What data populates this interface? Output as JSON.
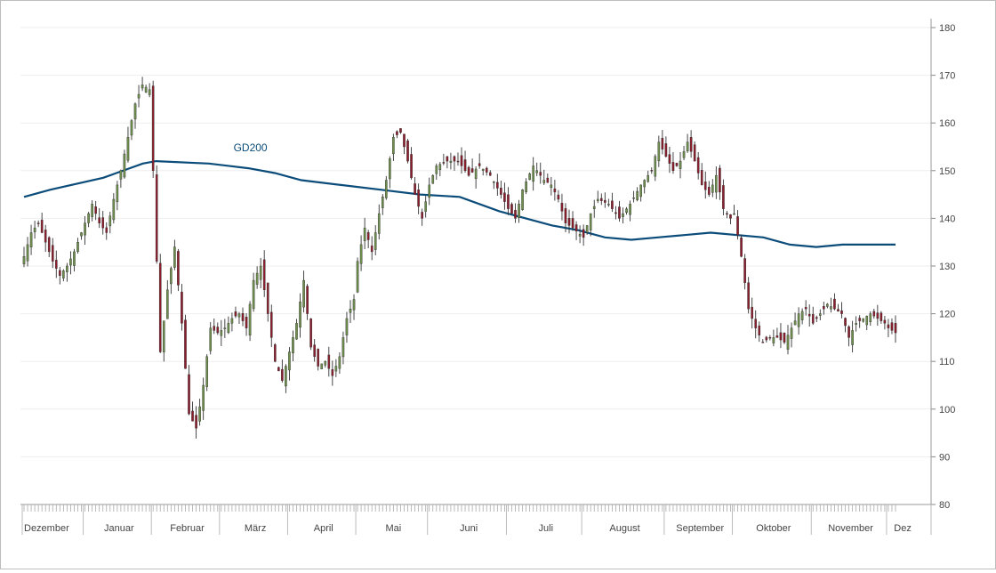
{
  "chart_data": {
    "type": "candlestick",
    "title": "",
    "xlabel": "",
    "ylabel": "",
    "ylim": [
      80,
      180
    ],
    "yticks": [
      80,
      90,
      100,
      110,
      120,
      130,
      140,
      150,
      160,
      170,
      180
    ],
    "grid": true,
    "colors": {
      "up": "#6f8f4d",
      "down": "#8b1d2c",
      "wick": "#333333",
      "ma": "#0b4c7a",
      "grid": "#eeeeee"
    },
    "months": [
      "Dezember",
      "Januar",
      "Februar",
      "März",
      "April",
      "Mai",
      "Juni",
      "Juli",
      "August",
      "September",
      "Oktober",
      "November",
      "Dez"
    ],
    "month_start_index": [
      0,
      17,
      36,
      55,
      74,
      93,
      113,
      135,
      156,
      179,
      198,
      220,
      241
    ],
    "ma_label": "GD200",
    "ma_points": [
      {
        "i": 0,
        "v": 144.5
      },
      {
        "i": 10,
        "v": 146.0
      },
      {
        "i": 30,
        "v": 148.5
      },
      {
        "i": 45,
        "v": 151.5
      },
      {
        "i": 50,
        "v": 152.0
      },
      {
        "i": 70,
        "v": 151.5
      },
      {
        "i": 85,
        "v": 150.5
      },
      {
        "i": 95,
        "v": 149.5
      },
      {
        "i": 105,
        "v": 148.0
      },
      {
        "i": 120,
        "v": 147.0
      },
      {
        "i": 135,
        "v": 146.0
      },
      {
        "i": 150,
        "v": 145.0
      },
      {
        "i": 165,
        "v": 144.5
      },
      {
        "i": 180,
        "v": 141.5
      },
      {
        "i": 200,
        "v": 138.5
      },
      {
        "i": 210,
        "v": 137.5
      },
      {
        "i": 220,
        "v": 136.0
      },
      {
        "i": 230,
        "v": 135.5
      },
      {
        "i": 240,
        "v": 136.0
      },
      {
        "i": 250,
        "v": 136.5
      },
      {
        "i": 260,
        "v": 137.0
      },
      {
        "i": 280,
        "v": 136.0
      },
      {
        "i": 290,
        "v": 134.5
      },
      {
        "i": 300,
        "v": 134.0
      },
      {
        "i": 310,
        "v": 134.5
      },
      {
        "i": 320,
        "v": 134.5
      },
      {
        "i": 330,
        "v": 134.5
      }
    ],
    "anchors": [
      [
        0,
        132
      ],
      [
        2,
        137
      ],
      [
        4,
        139
      ],
      [
        6,
        135
      ],
      [
        8,
        131
      ],
      [
        10,
        128
      ],
      [
        12,
        130
      ],
      [
        14,
        133
      ],
      [
        17,
        139
      ],
      [
        19,
        143
      ],
      [
        21,
        139
      ],
      [
        23,
        137
      ],
      [
        25,
        144
      ],
      [
        27,
        150
      ],
      [
        29,
        157
      ],
      [
        31,
        164
      ],
      [
        33,
        168
      ],
      [
        35,
        167
      ],
      [
        36,
        150
      ],
      [
        38,
        112
      ],
      [
        40,
        125
      ],
      [
        42,
        134
      ],
      [
        44,
        118
      ],
      [
        46,
        99
      ],
      [
        48,
        96
      ],
      [
        50,
        105
      ],
      [
        52,
        117
      ],
      [
        54,
        116
      ],
      [
        56,
        117
      ],
      [
        58,
        119
      ],
      [
        60,
        120
      ],
      [
        62,
        117
      ],
      [
        64,
        127
      ],
      [
        66,
        130
      ],
      [
        68,
        120
      ],
      [
        70,
        110
      ],
      [
        72,
        106
      ],
      [
        74,
        112
      ],
      [
        76,
        118
      ],
      [
        78,
        127
      ],
      [
        80,
        113
      ],
      [
        82,
        109
      ],
      [
        84,
        110
      ],
      [
        86,
        107
      ],
      [
        88,
        111
      ],
      [
        90,
        119
      ],
      [
        92,
        123
      ],
      [
        93,
        131
      ],
      [
        95,
        138
      ],
      [
        97,
        133
      ],
      [
        99,
        141
      ],
      [
        101,
        148
      ],
      [
        103,
        157
      ],
      [
        105,
        158
      ],
      [
        107,
        152
      ],
      [
        109,
        145
      ],
      [
        111,
        140
      ],
      [
        113,
        147
      ],
      [
        115,
        151
      ],
      [
        118,
        152
      ],
      [
        121,
        152
      ],
      [
        124,
        149
      ],
      [
        127,
        151
      ],
      [
        130,
        149
      ],
      [
        133,
        145
      ],
      [
        135,
        142
      ],
      [
        137,
        140
      ],
      [
        139,
        146
      ],
      [
        142,
        151
      ],
      [
        145,
        148
      ],
      [
        147,
        147
      ],
      [
        149,
        144
      ],
      [
        151,
        139
      ],
      [
        153,
        138
      ],
      [
        156,
        136
      ],
      [
        158,
        141
      ],
      [
        160,
        144
      ],
      [
        163,
        143
      ],
      [
        166,
        140
      ],
      [
        169,
        143
      ],
      [
        172,
        147
      ],
      [
        175,
        150
      ],
      [
        177,
        156
      ],
      [
        179,
        153
      ],
      [
        181,
        150
      ],
      [
        183,
        152
      ],
      [
        185,
        156
      ],
      [
        187,
        152
      ],
      [
        189,
        147
      ],
      [
        191,
        145
      ],
      [
        193,
        149
      ],
      [
        195,
        142
      ],
      [
        197,
        140
      ],
      [
        198,
        141
      ],
      [
        200,
        132
      ],
      [
        202,
        121
      ],
      [
        204,
        117
      ],
      [
        206,
        114
      ],
      [
        208,
        115
      ],
      [
        210,
        115
      ],
      [
        212,
        114
      ],
      [
        214,
        117
      ],
      [
        216,
        120
      ],
      [
        218,
        121
      ],
      [
        220,
        118
      ],
      [
        222,
        120
      ],
      [
        224,
        122
      ],
      [
        226,
        121
      ],
      [
        228,
        120
      ],
      [
        230,
        115
      ],
      [
        232,
        118
      ],
      [
        234,
        119
      ],
      [
        236,
        120
      ],
      [
        238,
        119
      ],
      [
        240,
        118
      ],
      [
        241,
        117
      ],
      [
        243,
        116
      ]
    ]
  }
}
